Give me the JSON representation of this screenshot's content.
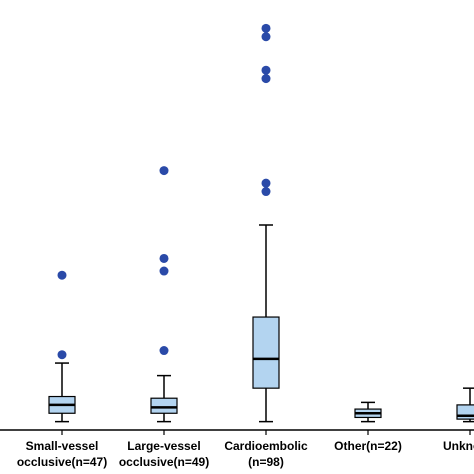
{
  "chart_data": {
    "type": "boxplot",
    "title": "",
    "xlabel": "",
    "ylabel": "",
    "ylim": [
      -1,
      48
    ],
    "grid": false,
    "legend": "none",
    "colors": {
      "box_fill": "#b3d4f0",
      "box_stroke": "#000000",
      "outlier": "#2a4aa8",
      "axis": "#000000"
    },
    "categories": [
      {
        "line1": "Small-vessel",
        "line2": "occlusive(n=47)"
      },
      {
        "line1": "Large-vessel",
        "line2": "occlusive(n=49)"
      },
      {
        "line1": "Cardioembolic",
        "line2": "(n=98)"
      },
      {
        "line1": "Other(n=22)",
        "line2": ""
      },
      {
        "line1": "Unknown",
        "line2": ""
      }
    ],
    "series": [
      {
        "whisker_low": 0,
        "q1": 1,
        "median": 2,
        "q3": 3,
        "whisker_high": 7,
        "outliers": [
          8,
          17.5
        ]
      },
      {
        "whisker_low": 0,
        "q1": 1,
        "median": 1.7,
        "q3": 2.8,
        "whisker_high": 5.5,
        "outliers": [
          8.5,
          18,
          19.5,
          30
        ]
      },
      {
        "whisker_low": 0,
        "q1": 4,
        "median": 7.5,
        "q3": 12.5,
        "whisker_high": 23.5,
        "outliers": [
          27.5,
          28.5,
          41,
          42,
          46,
          47
        ]
      },
      {
        "whisker_low": 0,
        "q1": 0.5,
        "median": 1,
        "q3": 1.5,
        "whisker_high": 2.3,
        "outliers": []
      },
      {
        "whisker_low": 0,
        "q1": 0.3,
        "median": 0.7,
        "q3": 2,
        "whisker_high": 4,
        "outliers": []
      }
    ]
  }
}
